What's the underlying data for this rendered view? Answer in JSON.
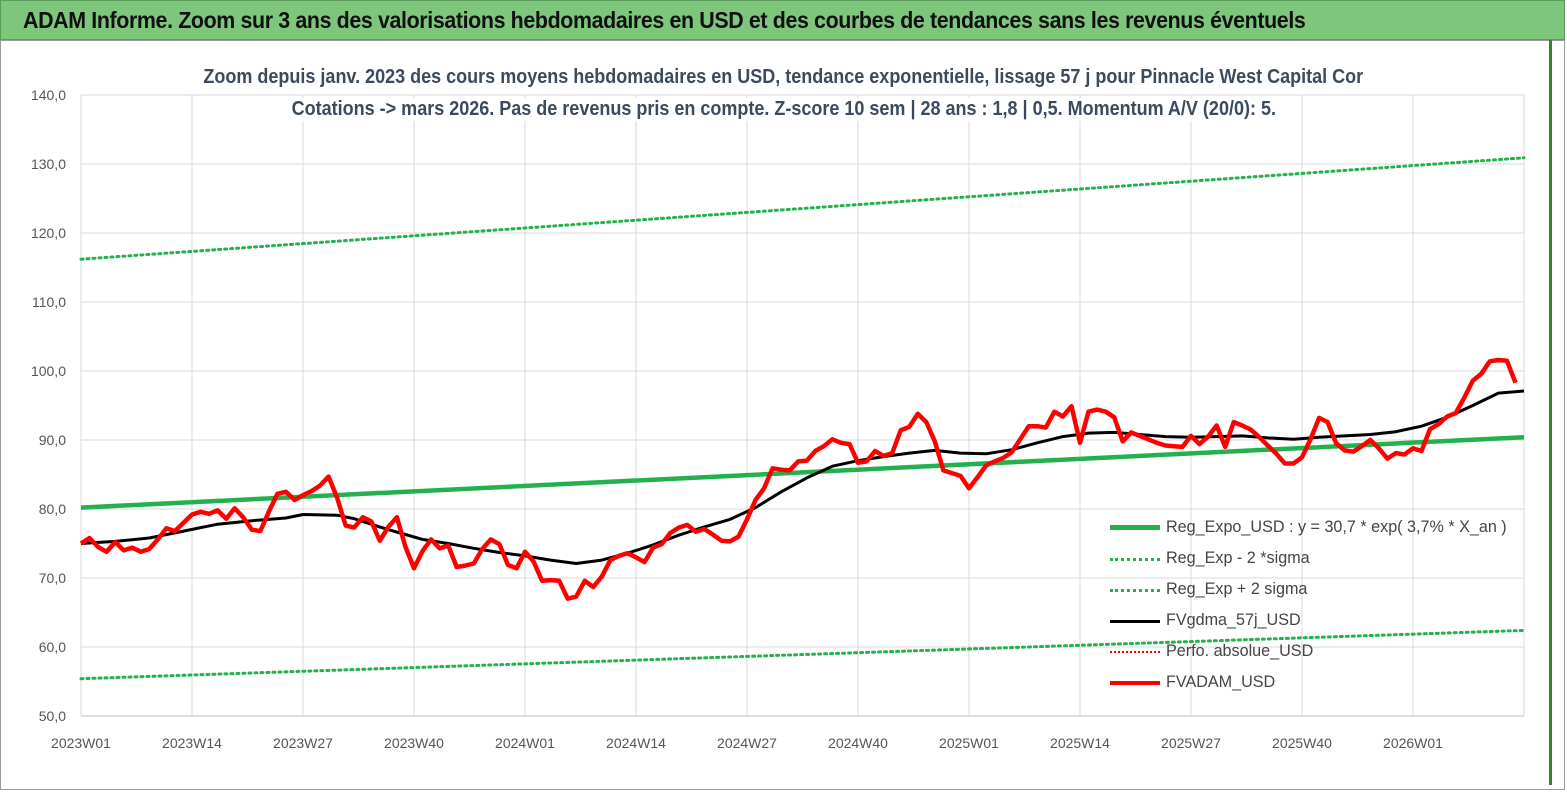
{
  "banner": {
    "title": "ADAM Informe. Zoom sur 3 ans des valorisations hebdomadaires en USD et des courbes de tendances sans les revenus éventuels"
  },
  "chart_data": {
    "type": "line",
    "title": "Zoom depuis janv. 2023 des cours moyens hebdomadaires en USD, tendance exponentielle, lissage 57 j pour Pinnacle West Capital Cor",
    "subtitle": "Cotations -> mars 2026. Pas de revenus pris en compte. Z-score 10 sem | 28 ans : 1,8 | 0,5. Momentum A/V (20/0): 5.",
    "ylim": [
      50,
      140
    ],
    "xlim": [
      0,
      169
    ],
    "y_ticks": [
      "50,0",
      "60,0",
      "70,0",
      "80,0",
      "90,0",
      "100,0",
      "110,0",
      "120,0",
      "130,0",
      "140,0"
    ],
    "x_ticks": [
      {
        "x": 0,
        "label": "2023W01"
      },
      {
        "x": 13,
        "label": "2023W14"
      },
      {
        "x": 26,
        "label": "2023W27"
      },
      {
        "x": 39,
        "label": "2023W40"
      },
      {
        "x": 52,
        "label": "2024W01"
      },
      {
        "x": 65,
        "label": "2024W14"
      },
      {
        "x": 78,
        "label": "2024W27"
      },
      {
        "x": 91,
        "label": "2024W40"
      },
      {
        "x": 104,
        "label": "2025W01"
      },
      {
        "x": 117,
        "label": "2025W14"
      },
      {
        "x": 130,
        "label": "2025W27"
      },
      {
        "x": 143,
        "label": "2025W40"
      },
      {
        "x": 156,
        "label": "2026W01"
      }
    ],
    "grid": true,
    "legend_position": "bottom-right",
    "series": [
      {
        "name": "Reg_Expo_USD : y = 30,7 * exp( 3,7% *  X_an )",
        "color": "#22b14c",
        "style": "solid-thick",
        "points": [
          [
            0,
            80.2
          ],
          [
            169,
            90.4
          ]
        ]
      },
      {
        "name": "Reg_Exp - 2 *sigma",
        "color": "#22b14c",
        "style": "dotted",
        "points": [
          [
            0,
            55.4
          ],
          [
            169,
            62.4
          ]
        ]
      },
      {
        "name": "Reg_Exp + 2 sigma",
        "color": "#22b14c",
        "style": "dotted",
        "points": [
          [
            0,
            116.2
          ],
          [
            169,
            130.9
          ]
        ]
      },
      {
        "name": "FVgdma_57j_USD",
        "color": "#000000",
        "style": "solid",
        "points": [
          [
            0,
            75.0
          ],
          [
            4,
            75.3
          ],
          [
            8,
            75.8
          ],
          [
            12,
            76.8
          ],
          [
            16,
            77.8
          ],
          [
            20,
            78.3
          ],
          [
            24,
            78.7
          ],
          [
            26,
            79.2
          ],
          [
            30,
            79.1
          ],
          [
            32,
            78.6
          ],
          [
            34,
            77.8
          ],
          [
            36,
            77.0
          ],
          [
            38,
            76.3
          ],
          [
            40,
            75.6
          ],
          [
            43,
            75.0
          ],
          [
            46,
            74.3
          ],
          [
            49,
            73.7
          ],
          [
            52,
            73.2
          ],
          [
            55,
            72.6
          ],
          [
            58,
            72.1
          ],
          [
            61,
            72.6
          ],
          [
            64,
            73.6
          ],
          [
            67,
            74.8
          ],
          [
            70,
            76.2
          ],
          [
            73,
            77.4
          ],
          [
            76,
            78.5
          ],
          [
            79,
            80.2
          ],
          [
            82,
            82.5
          ],
          [
            85,
            84.5
          ],
          [
            88,
            86.2
          ],
          [
            91,
            87.0
          ],
          [
            94,
            87.6
          ],
          [
            97,
            88.1
          ],
          [
            100,
            88.5
          ],
          [
            103,
            88.1
          ],
          [
            106,
            88.0
          ],
          [
            109,
            88.6
          ],
          [
            112,
            89.6
          ],
          [
            115,
            90.5
          ],
          [
            118,
            91.0
          ],
          [
            121,
            91.1
          ],
          [
            124,
            90.8
          ],
          [
            127,
            90.5
          ],
          [
            130,
            90.4
          ],
          [
            133,
            90.5
          ],
          [
            136,
            90.6
          ],
          [
            139,
            90.3
          ],
          [
            142,
            90.1
          ],
          [
            145,
            90.4
          ],
          [
            148,
            90.6
          ],
          [
            151,
            90.8
          ],
          [
            154,
            91.2
          ],
          [
            157,
            92.0
          ],
          [
            160,
            93.3
          ],
          [
            163,
            95.0
          ],
          [
            166,
            96.8
          ],
          [
            169,
            97.1
          ]
        ]
      },
      {
        "name": "Perfo. absolue_USD",
        "color": "#ff0000",
        "style": "dotted",
        "points": []
      },
      {
        "name": "FVADAM_USD",
        "color": "#ff0000",
        "style": "solid-thick",
        "points": [
          [
            0,
            75.0
          ],
          [
            1,
            75.8
          ],
          [
            2,
            74.5
          ],
          [
            3,
            73.8
          ],
          [
            4,
            75.2
          ],
          [
            5,
            74.0
          ],
          [
            6,
            74.4
          ],
          [
            7,
            73.8
          ],
          [
            8,
            74.2
          ],
          [
            9,
            75.6
          ],
          [
            10,
            77.2
          ],
          [
            11,
            76.8
          ],
          [
            12,
            78.0
          ],
          [
            13,
            79.2
          ],
          [
            14,
            79.6
          ],
          [
            15,
            79.3
          ],
          [
            16,
            79.8
          ],
          [
            17,
            78.6
          ],
          [
            18,
            80.1
          ],
          [
            19,
            78.8
          ],
          [
            20,
            77.0
          ],
          [
            21,
            76.8
          ],
          [
            22,
            79.6
          ],
          [
            23,
            82.2
          ],
          [
            24,
            82.5
          ],
          [
            25,
            81.3
          ],
          [
            26,
            82.0
          ],
          [
            27,
            82.6
          ],
          [
            28,
            83.4
          ],
          [
            29,
            84.7
          ],
          [
            30,
            81.6
          ],
          [
            31,
            77.6
          ],
          [
            32,
            77.3
          ],
          [
            33,
            78.8
          ],
          [
            34,
            78.2
          ],
          [
            35,
            75.4
          ],
          [
            36,
            77.4
          ],
          [
            37,
            78.8
          ],
          [
            38,
            74.5
          ],
          [
            39,
            71.4
          ],
          [
            40,
            73.9
          ],
          [
            41,
            75.6
          ],
          [
            42,
            74.3
          ],
          [
            43,
            74.7
          ],
          [
            44,
            71.6
          ],
          [
            45,
            71.8
          ],
          [
            46,
            72.1
          ],
          [
            47,
            74.2
          ],
          [
            48,
            75.6
          ],
          [
            49,
            74.9
          ],
          [
            50,
            71.9
          ],
          [
            51,
            71.4
          ],
          [
            52,
            73.8
          ],
          [
            53,
            72.4
          ],
          [
            54,
            69.6
          ],
          [
            55,
            69.7
          ],
          [
            56,
            69.6
          ],
          [
            57,
            67.0
          ],
          [
            58,
            67.3
          ],
          [
            59,
            69.6
          ],
          [
            60,
            68.7
          ],
          [
            61,
            70.2
          ],
          [
            62,
            72.6
          ],
          [
            63,
            73.2
          ],
          [
            64,
            73.6
          ],
          [
            65,
            73.0
          ],
          [
            66,
            72.3
          ],
          [
            67,
            74.4
          ],
          [
            68,
            74.9
          ],
          [
            69,
            76.5
          ],
          [
            70,
            77.3
          ],
          [
            71,
            77.7
          ],
          [
            72,
            76.7
          ],
          [
            73,
            77.1
          ],
          [
            74,
            76.3
          ],
          [
            75,
            75.4
          ],
          [
            76,
            75.3
          ],
          [
            77,
            76.0
          ],
          [
            78,
            78.5
          ],
          [
            79,
            81.3
          ],
          [
            80,
            83.0
          ],
          [
            81,
            85.9
          ],
          [
            82,
            85.7
          ],
          [
            83,
            85.6
          ],
          [
            84,
            86.9
          ],
          [
            85,
            87.0
          ],
          [
            86,
            88.4
          ],
          [
            87,
            89.1
          ],
          [
            88,
            90.1
          ],
          [
            89,
            89.6
          ],
          [
            90,
            89.4
          ],
          [
            91,
            86.7
          ],
          [
            92,
            86.9
          ],
          [
            93,
            88.4
          ],
          [
            94,
            87.7
          ],
          [
            95,
            88.1
          ],
          [
            96,
            91.4
          ],
          [
            97,
            91.9
          ],
          [
            98,
            93.8
          ],
          [
            99,
            92.6
          ],
          [
            100,
            89.8
          ],
          [
            101,
            85.6
          ],
          [
            102,
            85.2
          ],
          [
            103,
            84.8
          ],
          [
            104,
            83.0
          ],
          [
            105,
            84.6
          ],
          [
            106,
            86.3
          ],
          [
            107,
            86.9
          ],
          [
            108,
            87.4
          ],
          [
            109,
            88.2
          ],
          [
            110,
            90.1
          ],
          [
            111,
            92.0
          ],
          [
            112,
            92.0
          ],
          [
            113,
            91.8
          ],
          [
            114,
            94.1
          ],
          [
            115,
            93.4
          ],
          [
            116,
            94.9
          ],
          [
            117,
            89.6
          ],
          [
            118,
            94.1
          ],
          [
            119,
            94.4
          ],
          [
            120,
            94.1
          ],
          [
            121,
            93.3
          ],
          [
            122,
            89.8
          ],
          [
            123,
            91.1
          ],
          [
            124,
            90.6
          ],
          [
            125,
            90.1
          ],
          [
            126,
            89.6
          ],
          [
            127,
            89.2
          ],
          [
            128,
            89.1
          ],
          [
            129,
            89.0
          ],
          [
            130,
            90.6
          ],
          [
            131,
            89.4
          ],
          [
            132,
            90.5
          ],
          [
            133,
            92.1
          ],
          [
            134,
            89.0
          ],
          [
            135,
            92.6
          ],
          [
            136,
            92.1
          ],
          [
            137,
            91.5
          ],
          [
            138,
            90.4
          ],
          [
            139,
            89.2
          ],
          [
            140,
            88.0
          ],
          [
            141,
            86.6
          ],
          [
            142,
            86.6
          ],
          [
            143,
            87.5
          ],
          [
            144,
            90.1
          ],
          [
            145,
            93.2
          ],
          [
            146,
            92.6
          ],
          [
            147,
            89.5
          ],
          [
            148,
            88.5
          ],
          [
            149,
            88.3
          ],
          [
            150,
            89.1
          ],
          [
            151,
            90.0
          ],
          [
            152,
            88.8
          ],
          [
            153,
            87.3
          ],
          [
            154,
            88.1
          ],
          [
            155,
            87.9
          ],
          [
            156,
            88.8
          ],
          [
            157,
            88.4
          ],
          [
            158,
            91.6
          ],
          [
            159,
            92.3
          ],
          [
            160,
            93.4
          ],
          [
            161,
            93.9
          ],
          [
            162,
            96.1
          ],
          [
            163,
            98.6
          ],
          [
            164,
            99.6
          ],
          [
            165,
            101.4
          ],
          [
            166,
            101.6
          ],
          [
            167,
            101.5
          ],
          [
            168,
            98.3
          ]
        ]
      }
    ]
  }
}
